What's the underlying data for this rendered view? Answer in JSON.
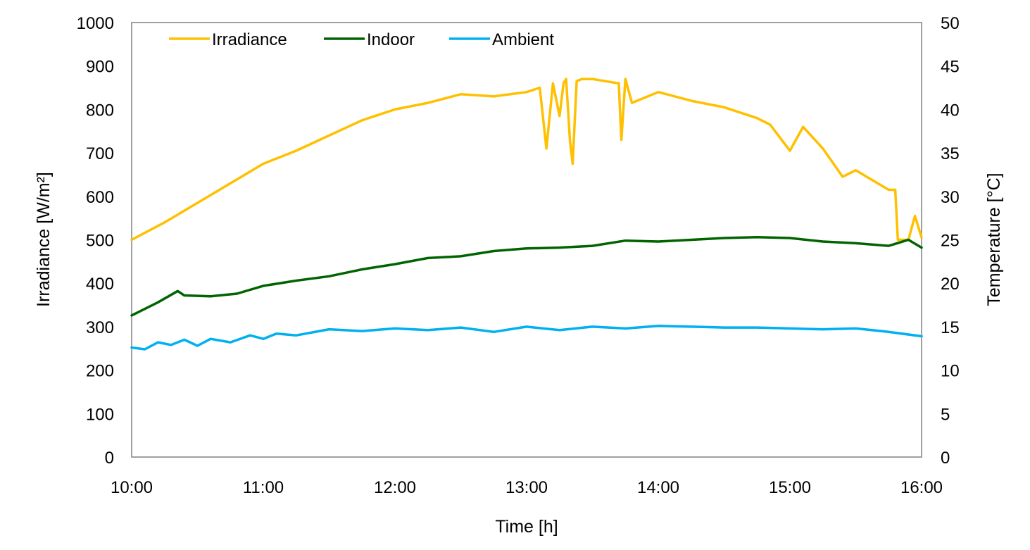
{
  "chart_data": {
    "type": "line",
    "xlabel": "Time [h]",
    "ylabel_left": "Irradiance [W/m²]",
    "ylabel_right": "Temperature [°C]",
    "x_ticks": [
      "10:00",
      "11:00",
      "12:00",
      "13:00",
      "14:00",
      "15:00",
      "16:00"
    ],
    "x_range_hours": [
      10,
      16
    ],
    "y_left_ticks": [
      "0",
      "100",
      "200",
      "300",
      "400",
      "500",
      "600",
      "700",
      "800",
      "900",
      "1000"
    ],
    "y_left_range": [
      0,
      1000
    ],
    "y_right_ticks": [
      "0",
      "5",
      "10",
      "15",
      "20",
      "25",
      "30",
      "35",
      "40",
      "45",
      "50"
    ],
    "y_right_range": [
      0,
      50
    ],
    "grid": false,
    "legend_position": "top-left",
    "series": [
      {
        "name": "Irradiance",
        "axis": "left",
        "color": "#FFC000",
        "x": [
          10.0,
          10.25,
          10.5,
          10.75,
          11.0,
          11.25,
          11.5,
          11.75,
          12.0,
          12.25,
          12.5,
          12.75,
          13.0,
          13.1,
          13.15,
          13.2,
          13.25,
          13.28,
          13.3,
          13.33,
          13.35,
          13.38,
          13.42,
          13.5,
          13.6,
          13.7,
          13.72,
          13.75,
          13.8,
          14.0,
          14.25,
          14.5,
          14.75,
          14.85,
          14.95,
          15.0,
          15.1,
          15.25,
          15.4,
          15.5,
          15.75,
          15.8,
          15.82,
          15.9,
          15.95,
          16.0
        ],
        "values": [
          500,
          540,
          585,
          630,
          675,
          705,
          740,
          775,
          800,
          815,
          835,
          830,
          840,
          850,
          710,
          860,
          785,
          860,
          870,
          725,
          675,
          865,
          870,
          870,
          865,
          860,
          730,
          870,
          815,
          840,
          820,
          805,
          780,
          765,
          725,
          705,
          760,
          710,
          645,
          660,
          615,
          615,
          500,
          500,
          555,
          505
        ]
      },
      {
        "name": "Indoor",
        "axis": "right",
        "color": "#006400",
        "x": [
          10.0,
          10.2,
          10.35,
          10.4,
          10.6,
          10.8,
          11.0,
          11.25,
          11.5,
          11.75,
          12.0,
          12.25,
          12.5,
          12.75,
          13.0,
          13.25,
          13.5,
          13.75,
          14.0,
          14.25,
          14.5,
          14.75,
          15.0,
          15.25,
          15.5,
          15.75,
          15.9,
          16.0
        ],
        "values": [
          16.3,
          17.8,
          19.1,
          18.6,
          18.5,
          18.8,
          19.7,
          20.3,
          20.8,
          21.6,
          22.2,
          22.9,
          23.1,
          23.7,
          24.0,
          24.1,
          24.3,
          24.9,
          24.8,
          25.0,
          25.2,
          25.3,
          25.2,
          24.8,
          24.6,
          24.3,
          25.0,
          24.1
        ]
      },
      {
        "name": "Ambient",
        "axis": "right",
        "color": "#00B0F0",
        "x": [
          10.0,
          10.1,
          10.2,
          10.3,
          10.4,
          10.5,
          10.6,
          10.75,
          10.9,
          11.0,
          11.1,
          11.25,
          11.5,
          11.75,
          12.0,
          12.25,
          12.5,
          12.75,
          13.0,
          13.25,
          13.5,
          13.75,
          14.0,
          14.25,
          14.5,
          14.75,
          15.0,
          15.25,
          15.5,
          15.75,
          16.0
        ],
        "values": [
          12.6,
          12.4,
          13.2,
          12.9,
          13.5,
          12.8,
          13.6,
          13.2,
          14.0,
          13.6,
          14.2,
          14.0,
          14.7,
          14.5,
          14.8,
          14.6,
          14.9,
          14.4,
          15.0,
          14.6,
          15.0,
          14.8,
          15.1,
          15.0,
          14.9,
          14.9,
          14.8,
          14.7,
          14.8,
          14.4,
          13.9
        ]
      }
    ]
  }
}
